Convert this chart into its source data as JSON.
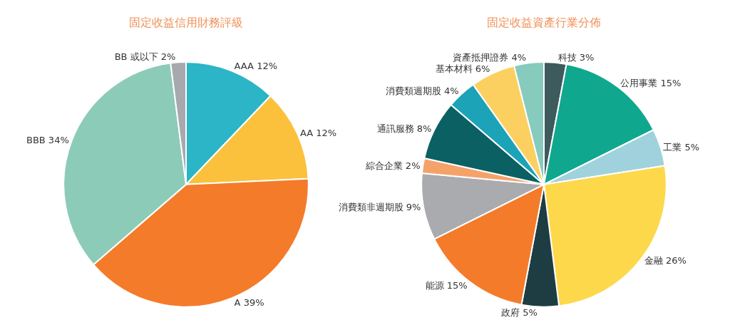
{
  "chart_data": [
    {
      "type": "pie",
      "title": "固定收益信用財務評級",
      "categories": [
        "AAA",
        "AA",
        "A",
        "BBB",
        "BB 或以下"
      ],
      "values": [
        12,
        12,
        39,
        34,
        2
      ],
      "value_labels": [
        "12%",
        "12%",
        "39%",
        "34%",
        "2%"
      ],
      "colors": [
        "#2bb5c7",
        "#fbc13c",
        "#f47b2a",
        "#8ccbb8",
        "#a6a9ad"
      ]
    },
    {
      "type": "pie",
      "title": "固定收益資產行業分佈",
      "categories": [
        "科技",
        "公用事業",
        "工業",
        "金融",
        "政府",
        "能源",
        "消費類非週期股",
        "綜合企業",
        "通訊服務",
        "消費類週期股",
        "基本材料",
        "資產抵押證券"
      ],
      "values": [
        3,
        15,
        5,
        26,
        5,
        15,
        9,
        2,
        8,
        4,
        6,
        4
      ],
      "value_labels": [
        "3%",
        "15%",
        "5%",
        "26%",
        "5%",
        "15%",
        "9%",
        "2%",
        "8%",
        "4%",
        "6%",
        "4%"
      ],
      "colors": [
        "#3d5a5c",
        "#0fa88f",
        "#9fd2dd",
        "#fdd84a",
        "#1d3d42",
        "#f47b2a",
        "#a9abae",
        "#f5a26a",
        "#0b6063",
        "#1ca3b8",
        "#fcd060",
        "#86cbbd"
      ]
    }
  ]
}
